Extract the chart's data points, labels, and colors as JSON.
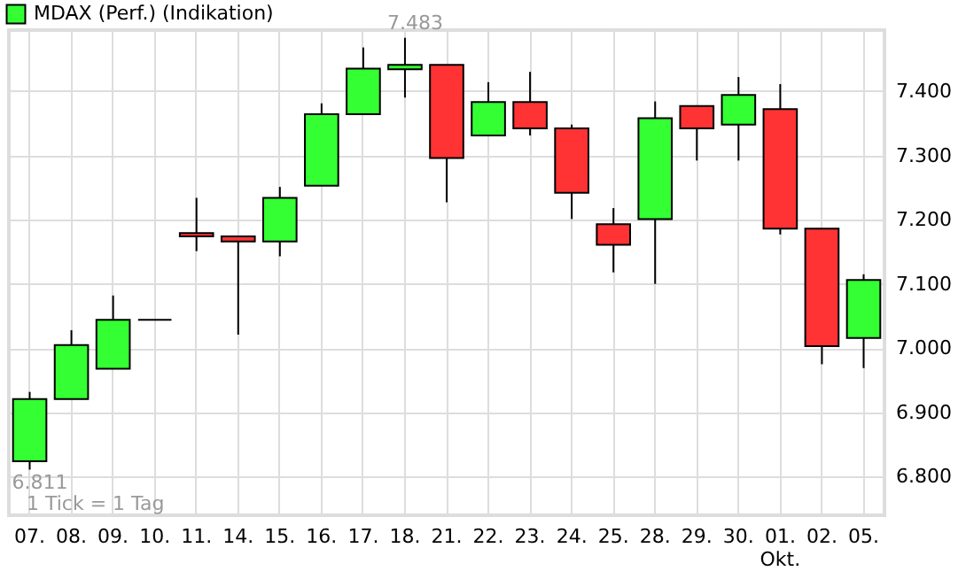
{
  "chart_data": {
    "type": "candlestick",
    "categories": [
      "07.",
      "08.",
      "09.",
      "10.",
      "11.",
      "14.",
      "15.",
      "16.",
      "17.",
      "18.",
      "21.",
      "22.",
      "23.",
      "24.",
      "25.",
      "28.",
      "29.",
      "30.",
      "01.\nOkt.",
      "02.",
      "05."
    ],
    "series": [
      {
        "name": "MDAX (Perf.) (Indikation)",
        "color": "#33ff33",
        "ohlc": [
          [
            6824,
            6932,
            6811,
            6921
          ],
          [
            6921,
            7028,
            6921,
            7005
          ],
          [
            6968,
            7082,
            6968,
            7044
          ],
          [
            7044,
            7044,
            7044,
            7044
          ],
          [
            7179,
            7234,
            7151,
            7174
          ],
          [
            7174,
            7174,
            7021,
            7166
          ],
          [
            7166,
            7251,
            7143,
            7234
          ],
          [
            7253,
            7381,
            7253,
            7364
          ],
          [
            7364,
            7468,
            7364,
            7435
          ],
          [
            7434,
            7483,
            7390,
            7441
          ],
          [
            7441,
            7441,
            7227,
            7296
          ],
          [
            7331,
            7414,
            7331,
            7383
          ],
          [
            7383,
            7430,
            7331,
            7342
          ],
          [
            7342,
            7348,
            7201,
            7242
          ],
          [
            7193,
            7218,
            7118,
            7161
          ],
          [
            7201,
            7384,
            7100,
            7358
          ],
          [
            7377,
            7377,
            7292,
            7342
          ],
          [
            7348,
            7422,
            7292,
            7394
          ],
          [
            7372,
            7411,
            7177,
            7186
          ],
          [
            7186,
            7186,
            6975,
            7003
          ],
          [
            7016,
            7115,
            6969,
            7106
          ]
        ],
        "colors": [
          "#33ff33",
          "#33ff33",
          "#33ff33",
          "#000000",
          "#ff3333",
          "#ff3333",
          "#33ff33",
          "#33ff33",
          "#33ff33",
          "#33ff33",
          "#ff3333",
          "#33ff33",
          "#ff3333",
          "#ff3333",
          "#ff3333",
          "#33ff33",
          "#ff3333",
          "#33ff33",
          "#ff3333",
          "#ff3333",
          "#33ff33"
        ]
      }
    ],
    "ylim": [
      6740,
      7495
    ],
    "yticks": [
      {
        "value": 6800,
        "label": "6.800"
      },
      {
        "value": 6900,
        "label": "6.900"
      },
      {
        "value": 7000,
        "label": "7.000"
      },
      {
        "value": 7100,
        "label": "7.100"
      },
      {
        "value": 7200,
        "label": "7.200"
      },
      {
        "value": 7300,
        "label": "7.300"
      },
      {
        "value": 7400,
        "label": "7.400"
      }
    ],
    "grid": true,
    "legend": "top left",
    "annotations": [
      {
        "text": "7.483",
        "x": "18.",
        "y": 7483
      },
      {
        "text": "6.811",
        "x": "07.",
        "y": 6811
      },
      "1 Tick = 1 Tag"
    ]
  }
}
